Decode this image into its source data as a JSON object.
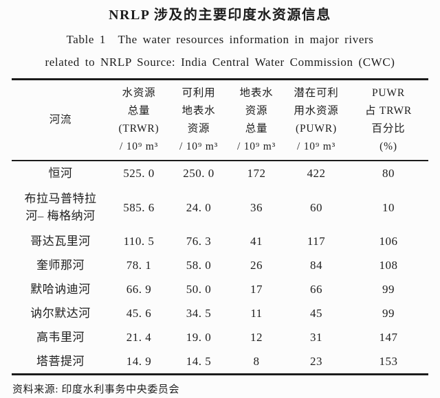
{
  "page": {
    "title": "NRLP 涉及的主要印度水资源信息",
    "subtitle_line1": "Table 1 The water resources information in major rivers",
    "subtitle_line2": "related to NRLP Source: India Central Water Commission (CWC)",
    "source_note": "资料来源: 印度水利事务中央委员会"
  },
  "colors": {
    "background": "#fcfcfc",
    "text": "#1d1d1d",
    "rule": "#1b1b1b"
  },
  "table": {
    "header": [
      "河流",
      "水资源\n总量\n(TRWR)\n/ 10⁹ m³",
      "可利用\n地表水\n资源\n/ 10⁹ m³",
      "地表水\n资源\n总量\n/ 10⁹ m³",
      "潜在可利\n用水资源\n(PUWR)\n/ 10⁹ m³",
      "PUWR\n占 TRWR\n百分比\n(%)"
    ],
    "rows": [
      {
        "cells": [
          "恒河",
          "525. 0",
          "250. 0",
          "172",
          "422",
          "80"
        ]
      },
      {
        "cells": [
          "布拉马普特拉\n河– 梅格纳河",
          "585. 6",
          "24. 0",
          "36",
          "60",
          "10"
        ]
      },
      {
        "cells": [
          "哥达瓦里河",
          "110. 5",
          "76. 3",
          "41",
          "117",
          "106"
        ]
      },
      {
        "cells": [
          "奎师那河",
          "78. 1",
          "58. 0",
          "26",
          "84",
          "108"
        ]
      },
      {
        "cells": [
          "默哈讷迪河",
          "66. 9",
          "50. 0",
          "17",
          "66",
          "99"
        ]
      },
      {
        "cells": [
          "讷尔默达河",
          "45. 6",
          "34. 5",
          "11",
          "45",
          "99"
        ]
      },
      {
        "cells": [
          "高韦里河",
          "21. 4",
          "19. 0",
          "12",
          "31",
          "147"
        ]
      },
      {
        "cells": [
          "塔菩提河",
          "14. 9",
          "14. 5",
          "8",
          "23",
          "153"
        ]
      }
    ]
  }
}
